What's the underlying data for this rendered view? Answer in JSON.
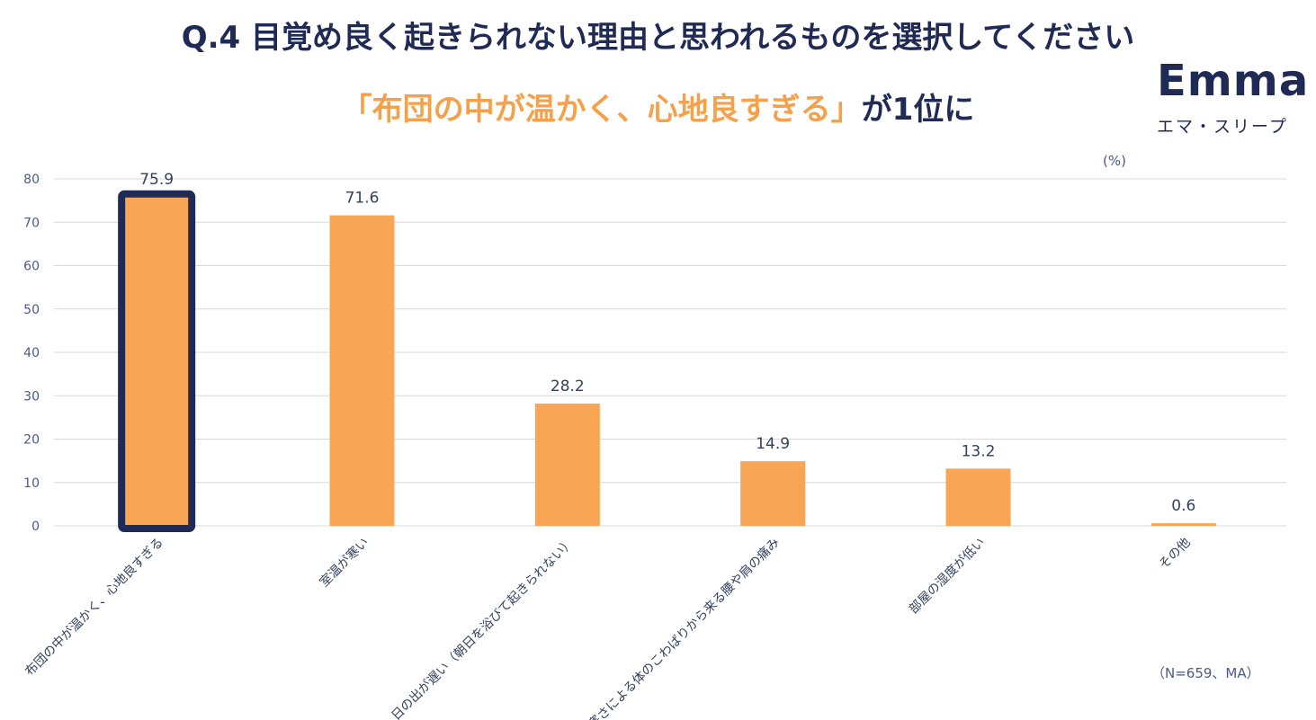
{
  "header": {
    "title": "Q.4 目覚め良く起きられない理由と思われるものを選択してください",
    "subtitle_highlight": "「布団の中が温かく、心地良すぎる」",
    "subtitle_rest": "が1位に"
  },
  "logo": {
    "wordmark": "Emma",
    "kana": "エマ・スリープ"
  },
  "notes": {
    "unit": "(%)",
    "sample": "（N=659、MA）"
  },
  "colors": {
    "bar": "#f9a556",
    "highlight_border": "#1f2a55",
    "title": "#1f2a55",
    "accent": "#f5a04a"
  },
  "chart_data": {
    "type": "bar",
    "categories": [
      "布団の中が温かく、心地良すぎる",
      "室温が寒い",
      "日の出が遅い（朝日を浴びて起きられない）",
      "寒さによる体のこわばりから来る腰や肩の痛み",
      "部屋の湿度が低い",
      "その他"
    ],
    "values": [
      75.9,
      71.6,
      28.2,
      14.9,
      13.2,
      0.6
    ],
    "data_labels": [
      "75.9",
      "71.6",
      "28.2",
      "14.9",
      "13.2",
      "0.6"
    ],
    "yticks": [
      "0",
      "10",
      "20",
      "30",
      "40",
      "50",
      "60",
      "70",
      "80"
    ],
    "ylim": [
      0,
      80
    ],
    "grid": true,
    "highlighted_index": 0
  }
}
